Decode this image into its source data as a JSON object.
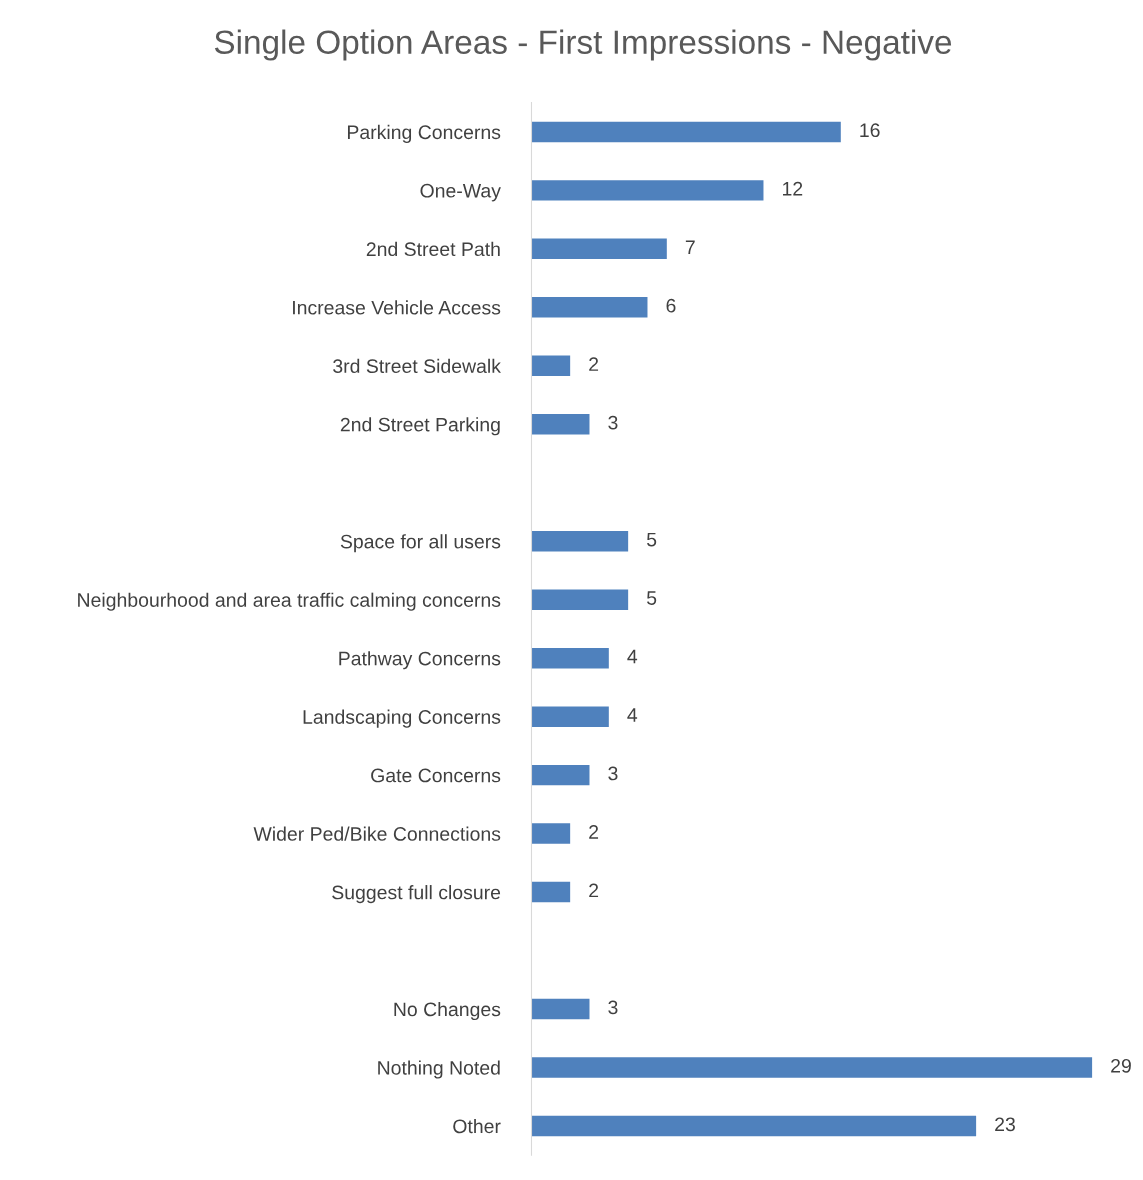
{
  "chart_data": {
    "type": "bar",
    "orientation": "horizontal",
    "title": "Single Option Areas - First Impressions - Negative",
    "categories": [
      "Parking Concerns",
      "One-Way",
      "2nd Street Path",
      "Increase Vehicle Access",
      "3rd Street Sidewalk",
      "2nd Street Parking",
      null,
      "Space for all users",
      "Neighbourhood and area traffic calming concerns",
      "Pathway Concerns",
      "Landscaping Concerns",
      "Gate Concerns",
      "Wider Ped/Bike Connections",
      "Suggest full closure",
      null,
      "No Changes",
      "Nothing Noted",
      "Other"
    ],
    "values": [
      16,
      12,
      7,
      6,
      2,
      3,
      null,
      5,
      5,
      4,
      4,
      3,
      2,
      2,
      null,
      3,
      29,
      23
    ],
    "color": "#4f81bd",
    "data_labels": true,
    "tick_labels": "y",
    "grid": false,
    "legend": false
  }
}
